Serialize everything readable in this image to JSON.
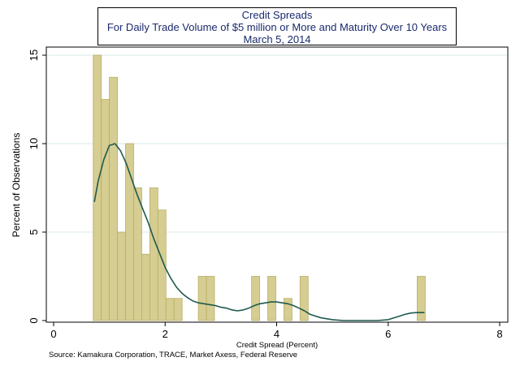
{
  "chart_data": {
    "type": "bar",
    "title": "Credit Spreads",
    "subtitle": "For Daily Trade Volume of $5 million or More and Maturity Over 10 Years",
    "date": "March 5, 2014",
    "xlabel": "Credit Spread (Percent)",
    "ylabel": "Percent of Observations",
    "xlim": [
      0,
      8
    ],
    "ylim": [
      0,
      15
    ],
    "xticks": [
      "0",
      "2",
      "4",
      "6",
      "8"
    ],
    "yticks": [
      "0",
      "5",
      "10",
      "15"
    ],
    "grid": true,
    "bin_width": 0.145,
    "series": [
      {
        "name": "Histogram",
        "bins": [
          {
            "start": 0.71,
            "value": 15.0
          },
          {
            "start": 0.855,
            "value": 12.5
          },
          {
            "start": 1.0,
            "value": 13.75
          },
          {
            "start": 1.145,
            "value": 5.0
          },
          {
            "start": 1.29,
            "value": 10.0
          },
          {
            "start": 1.435,
            "value": 7.5
          },
          {
            "start": 1.58,
            "value": 3.75
          },
          {
            "start": 1.725,
            "value": 7.5
          },
          {
            "start": 1.87,
            "value": 6.25
          },
          {
            "start": 2.015,
            "value": 1.25
          },
          {
            "start": 2.16,
            "value": 1.25
          },
          {
            "start": 2.595,
            "value": 2.5
          },
          {
            "start": 2.74,
            "value": 2.5
          },
          {
            "start": 3.55,
            "value": 2.5
          },
          {
            "start": 3.84,
            "value": 2.5
          },
          {
            "start": 4.13,
            "value": 1.25
          },
          {
            "start": 4.42,
            "value": 2.5
          },
          {
            "start": 6.52,
            "value": 2.5
          }
        ]
      },
      {
        "name": "Kernel density",
        "type": "line",
        "x": [
          0.73,
          0.8,
          0.9,
          1.0,
          1.1,
          1.2,
          1.3,
          1.4,
          1.5,
          1.6,
          1.7,
          1.8,
          1.9,
          2.0,
          2.1,
          2.2,
          2.3,
          2.4,
          2.5,
          2.6,
          2.7,
          2.8,
          2.9,
          3.0,
          3.1,
          3.2,
          3.3,
          3.4,
          3.5,
          3.6,
          3.7,
          3.8,
          3.9,
          4.0,
          4.1,
          4.2,
          4.3,
          4.4,
          4.5,
          4.6,
          4.8,
          5.0,
          5.2,
          5.4,
          5.6,
          5.8,
          6.0,
          6.1,
          6.2,
          6.3,
          6.4,
          6.5,
          6.65
        ],
        "y": [
          6.7,
          7.9,
          9.1,
          9.9,
          10.0,
          9.6,
          8.9,
          8.0,
          7.1,
          6.3,
          5.5,
          4.6,
          3.8,
          3.0,
          2.4,
          1.9,
          1.55,
          1.3,
          1.1,
          1.0,
          0.95,
          0.9,
          0.85,
          0.75,
          0.7,
          0.6,
          0.55,
          0.6,
          0.7,
          0.85,
          0.95,
          1.0,
          1.05,
          1.05,
          1.0,
          0.95,
          0.85,
          0.7,
          0.55,
          0.35,
          0.15,
          0.05,
          0.0,
          0.0,
          0.0,
          0.0,
          0.05,
          0.15,
          0.25,
          0.35,
          0.42,
          0.45,
          0.45
        ]
      }
    ],
    "colors": {
      "bar_fill": "#d6cd92",
      "bar_stroke": "#b9ae62",
      "line": "#1f5a4e",
      "grid": "#d8e8e8",
      "title_text": "#1a2a6c"
    }
  },
  "source": "Source: Kamakura Corporation, TRACE, Market Axess, Federal Reserve"
}
